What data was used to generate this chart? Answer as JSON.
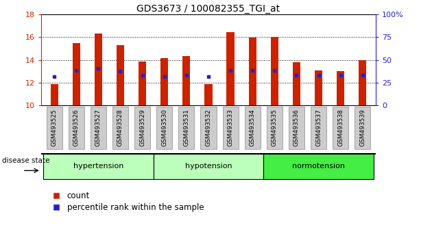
{
  "title": "GDS3673 / 100082355_TGI_at",
  "samples": [
    "GSM493525",
    "GSM493526",
    "GSM493527",
    "GSM493528",
    "GSM493529",
    "GSM493530",
    "GSM493531",
    "GSM493532",
    "GSM493533",
    "GSM493534",
    "GSM493535",
    "GSM493536",
    "GSM493537",
    "GSM493538",
    "GSM493539"
  ],
  "bar_tops": [
    11.85,
    15.5,
    16.3,
    15.3,
    13.85,
    14.15,
    14.35,
    11.85,
    16.45,
    15.95,
    16.0,
    13.8,
    13.1,
    13.0,
    14.0
  ],
  "bar_bottom": 10.0,
  "blue_values": [
    12.55,
    13.1,
    13.25,
    13.0,
    12.65,
    12.55,
    12.65,
    12.55,
    13.1,
    13.1,
    13.1,
    12.65,
    12.65,
    12.65,
    12.65
  ],
  "bar_color": "#cc2200",
  "blue_color": "#2222cc",
  "ylim_left": [
    10,
    18
  ],
  "ylim_right": [
    0,
    100
  ],
  "yticks_left": [
    10,
    12,
    14,
    16,
    18
  ],
  "yticks_right": [
    0,
    25,
    50,
    75,
    100
  ],
  "ytick_labels_right": [
    "0",
    "25",
    "50",
    "75",
    "100%"
  ],
  "group_labels": [
    "hypertension",
    "hypotension",
    "normotension"
  ],
  "group_colors": [
    "#bbffbb",
    "#bbffbb",
    "#44ee44"
  ],
  "group_boundaries": [
    0,
    5,
    10,
    15
  ],
  "disease_state_label": "disease state",
  "left_axis_color": "#cc2200",
  "right_axis_color": "#2222cc",
  "bar_width": 0.35,
  "tick_label_size": 7,
  "xtick_bg_color": "#cccccc",
  "legend_count_label": "count",
  "legend_pct_label": "percentile rank within the sample"
}
